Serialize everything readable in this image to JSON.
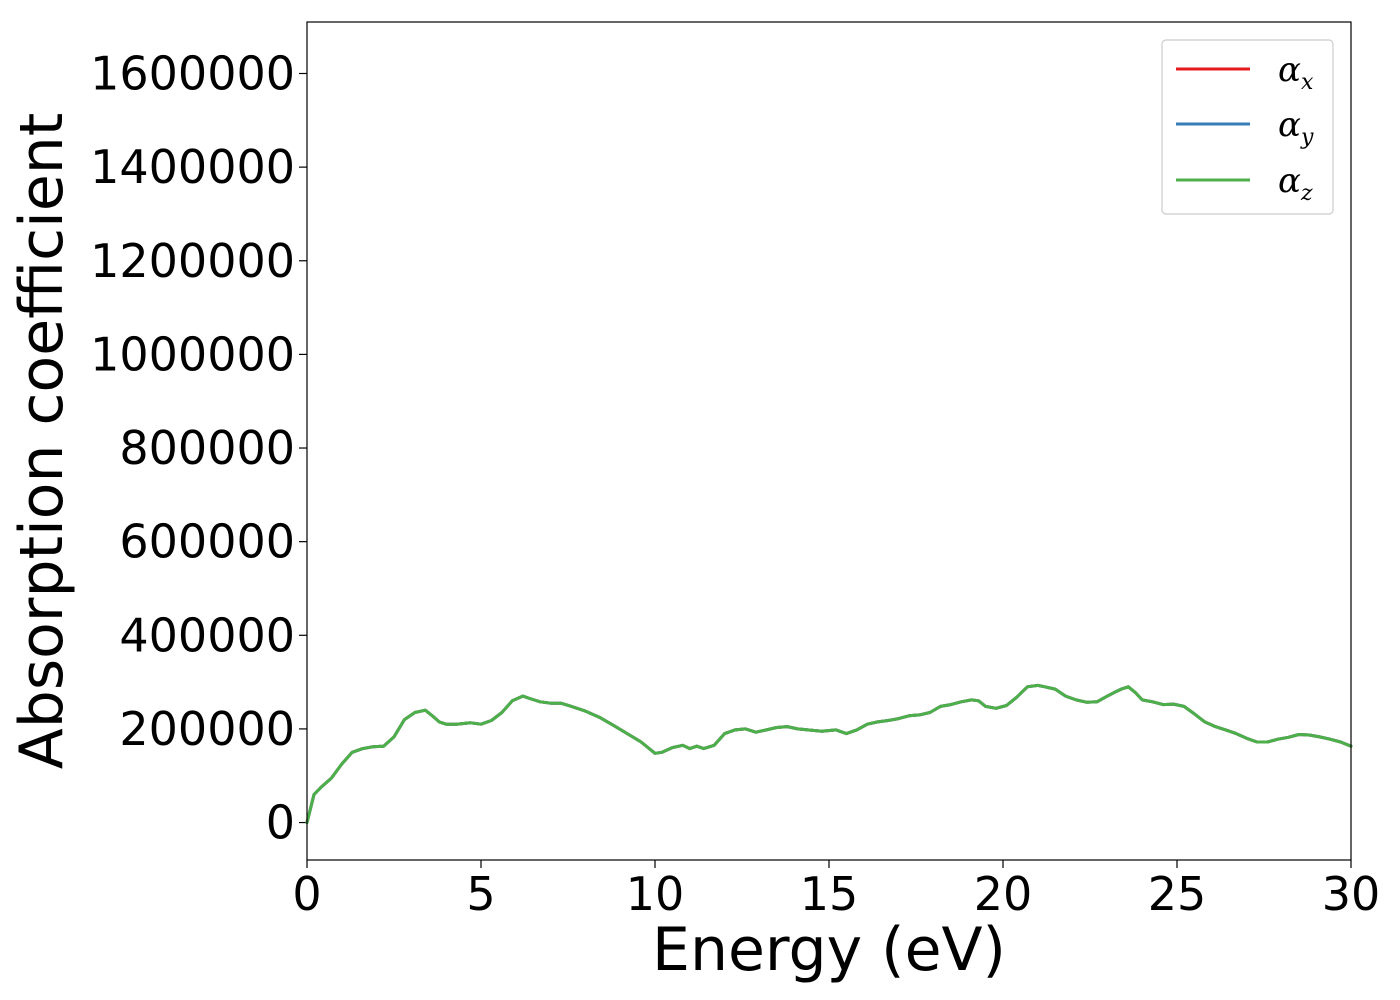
{
  "chart_data": {
    "type": "line",
    "title": "",
    "xlabel": "Energy (eV)",
    "ylabel": "Absorption coefficient",
    "xlim": [
      0,
      30
    ],
    "ylim": [
      -80000,
      1710000
    ],
    "xticks": [
      0,
      5,
      10,
      15,
      20,
      25,
      30
    ],
    "xtick_labels": [
      "0",
      "5",
      "10",
      "15",
      "20",
      "25",
      "30"
    ],
    "yticks": [
      0,
      200000,
      400000,
      600000,
      800000,
      1000000,
      1200000,
      1400000,
      1600000
    ],
    "ytick_labels": [
      "0",
      "200000",
      "400000",
      "600000",
      "800000",
      "1000000",
      "1200000",
      "1400000",
      "1600000"
    ],
    "grid": false,
    "legend_position": "top-right",
    "x": [
      0,
      0.2,
      0.4,
      0.7,
      1.0,
      1.3,
      1.6,
      1.9,
      2.2,
      2.5,
      2.8,
      3.1,
      3.4,
      3.6,
      3.8,
      4.0,
      4.3,
      4.7,
      5.0,
      5.3,
      5.6,
      5.9,
      6.2,
      6.4,
      6.7,
      7.0,
      7.3,
      7.6,
      8.0,
      8.4,
      8.8,
      9.2,
      9.6,
      10.0,
      10.2,
      10.5,
      10.8,
      11.0,
      11.2,
      11.4,
      11.7,
      12.0,
      12.3,
      12.6,
      12.9,
      13.2,
      13.5,
      13.8,
      14.1,
      14.5,
      14.8,
      15.2,
      15.5,
      15.8,
      16.1,
      16.4,
      16.7,
      17.0,
      17.3,
      17.6,
      17.9,
      18.2,
      18.5,
      18.8,
      19.1,
      19.3,
      19.5,
      19.8,
      20.1,
      20.4,
      20.7,
      21.0,
      21.2,
      21.5,
      21.8,
      22.1,
      22.4,
      22.7,
      23.0,
      23.2,
      23.4,
      23.6,
      23.8,
      24.0,
      24.3,
      24.6,
      24.9,
      25.2,
      25.5,
      25.8,
      26.1,
      26.4,
      26.7,
      27.0,
      27.3,
      27.6,
      27.9,
      28.2,
      28.5,
      28.8,
      29.1,
      29.4,
      29.7,
      30.0
    ],
    "series": [
      {
        "name": "α_x",
        "color": "#e41a1c",
        "values": [
          0,
          60000,
          75000,
          95000,
          125000,
          150000,
          158000,
          162000,
          163000,
          183000,
          220000,
          235000,
          240000,
          228000,
          215000,
          210000,
          210000,
          213000,
          210000,
          218000,
          235000,
          260000,
          270000,
          265000,
          258000,
          255000,
          255000,
          248000,
          238000,
          225000,
          208000,
          190000,
          172000,
          148000,
          150000,
          160000,
          165000,
          158000,
          163000,
          158000,
          165000,
          190000,
          198000,
          200000,
          193000,
          198000,
          203000,
          205000,
          200000,
          197000,
          195000,
          198000,
          190000,
          198000,
          210000,
          215000,
          218000,
          222000,
          228000,
          230000,
          235000,
          248000,
          252000,
          258000,
          262000,
          260000,
          248000,
          244000,
          250000,
          268000,
          290000,
          293000,
          290000,
          285000,
          270000,
          262000,
          257000,
          258000,
          270000,
          278000,
          285000,
          290000,
          278000,
          262000,
          258000,
          252000,
          253000,
          248000,
          232000,
          215000,
          205000,
          198000,
          190000,
          180000,
          172000,
          172000,
          178000,
          182000,
          188000,
          187000,
          183000,
          178000,
          172000,
          163000
        ]
      },
      {
        "name": "α_y",
        "color": "#377eb8",
        "values": [
          0,
          60000,
          75000,
          95000,
          125000,
          150000,
          158000,
          162000,
          163000,
          183000,
          220000,
          235000,
          240000,
          228000,
          215000,
          210000,
          210000,
          213000,
          210000,
          218000,
          235000,
          260000,
          270000,
          265000,
          258000,
          255000,
          255000,
          248000,
          238000,
          225000,
          208000,
          190000,
          172000,
          148000,
          150000,
          160000,
          165000,
          158000,
          163000,
          158000,
          165000,
          190000,
          198000,
          200000,
          193000,
          198000,
          203000,
          205000,
          200000,
          197000,
          195000,
          198000,
          190000,
          198000,
          210000,
          215000,
          218000,
          222000,
          228000,
          230000,
          235000,
          248000,
          252000,
          258000,
          262000,
          260000,
          248000,
          244000,
          250000,
          268000,
          290000,
          293000,
          290000,
          285000,
          270000,
          262000,
          257000,
          258000,
          270000,
          278000,
          285000,
          290000,
          278000,
          262000,
          258000,
          252000,
          253000,
          248000,
          232000,
          215000,
          205000,
          198000,
          190000,
          180000,
          172000,
          172000,
          178000,
          182000,
          188000,
          187000,
          183000,
          178000,
          172000,
          163000
        ]
      },
      {
        "name": "α_z",
        "color": "#4daf4a",
        "values": [
          0,
          60000,
          75000,
          95000,
          125000,
          150000,
          158000,
          162000,
          163000,
          183000,
          220000,
          235000,
          240000,
          228000,
          215000,
          210000,
          210000,
          213000,
          210000,
          218000,
          235000,
          260000,
          270000,
          265000,
          258000,
          255000,
          255000,
          248000,
          238000,
          225000,
          208000,
          190000,
          172000,
          148000,
          150000,
          160000,
          165000,
          158000,
          163000,
          158000,
          165000,
          190000,
          198000,
          200000,
          193000,
          198000,
          203000,
          205000,
          200000,
          197000,
          195000,
          198000,
          190000,
          198000,
          210000,
          215000,
          218000,
          222000,
          228000,
          230000,
          235000,
          248000,
          252000,
          258000,
          262000,
          260000,
          248000,
          244000,
          250000,
          268000,
          290000,
          293000,
          290000,
          285000,
          270000,
          262000,
          257000,
          258000,
          270000,
          278000,
          285000,
          290000,
          278000,
          262000,
          258000,
          252000,
          253000,
          248000,
          232000,
          215000,
          205000,
          198000,
          190000,
          180000,
          172000,
          172000,
          178000,
          182000,
          188000,
          187000,
          183000,
          178000,
          172000,
          163000
        ]
      }
    ]
  }
}
